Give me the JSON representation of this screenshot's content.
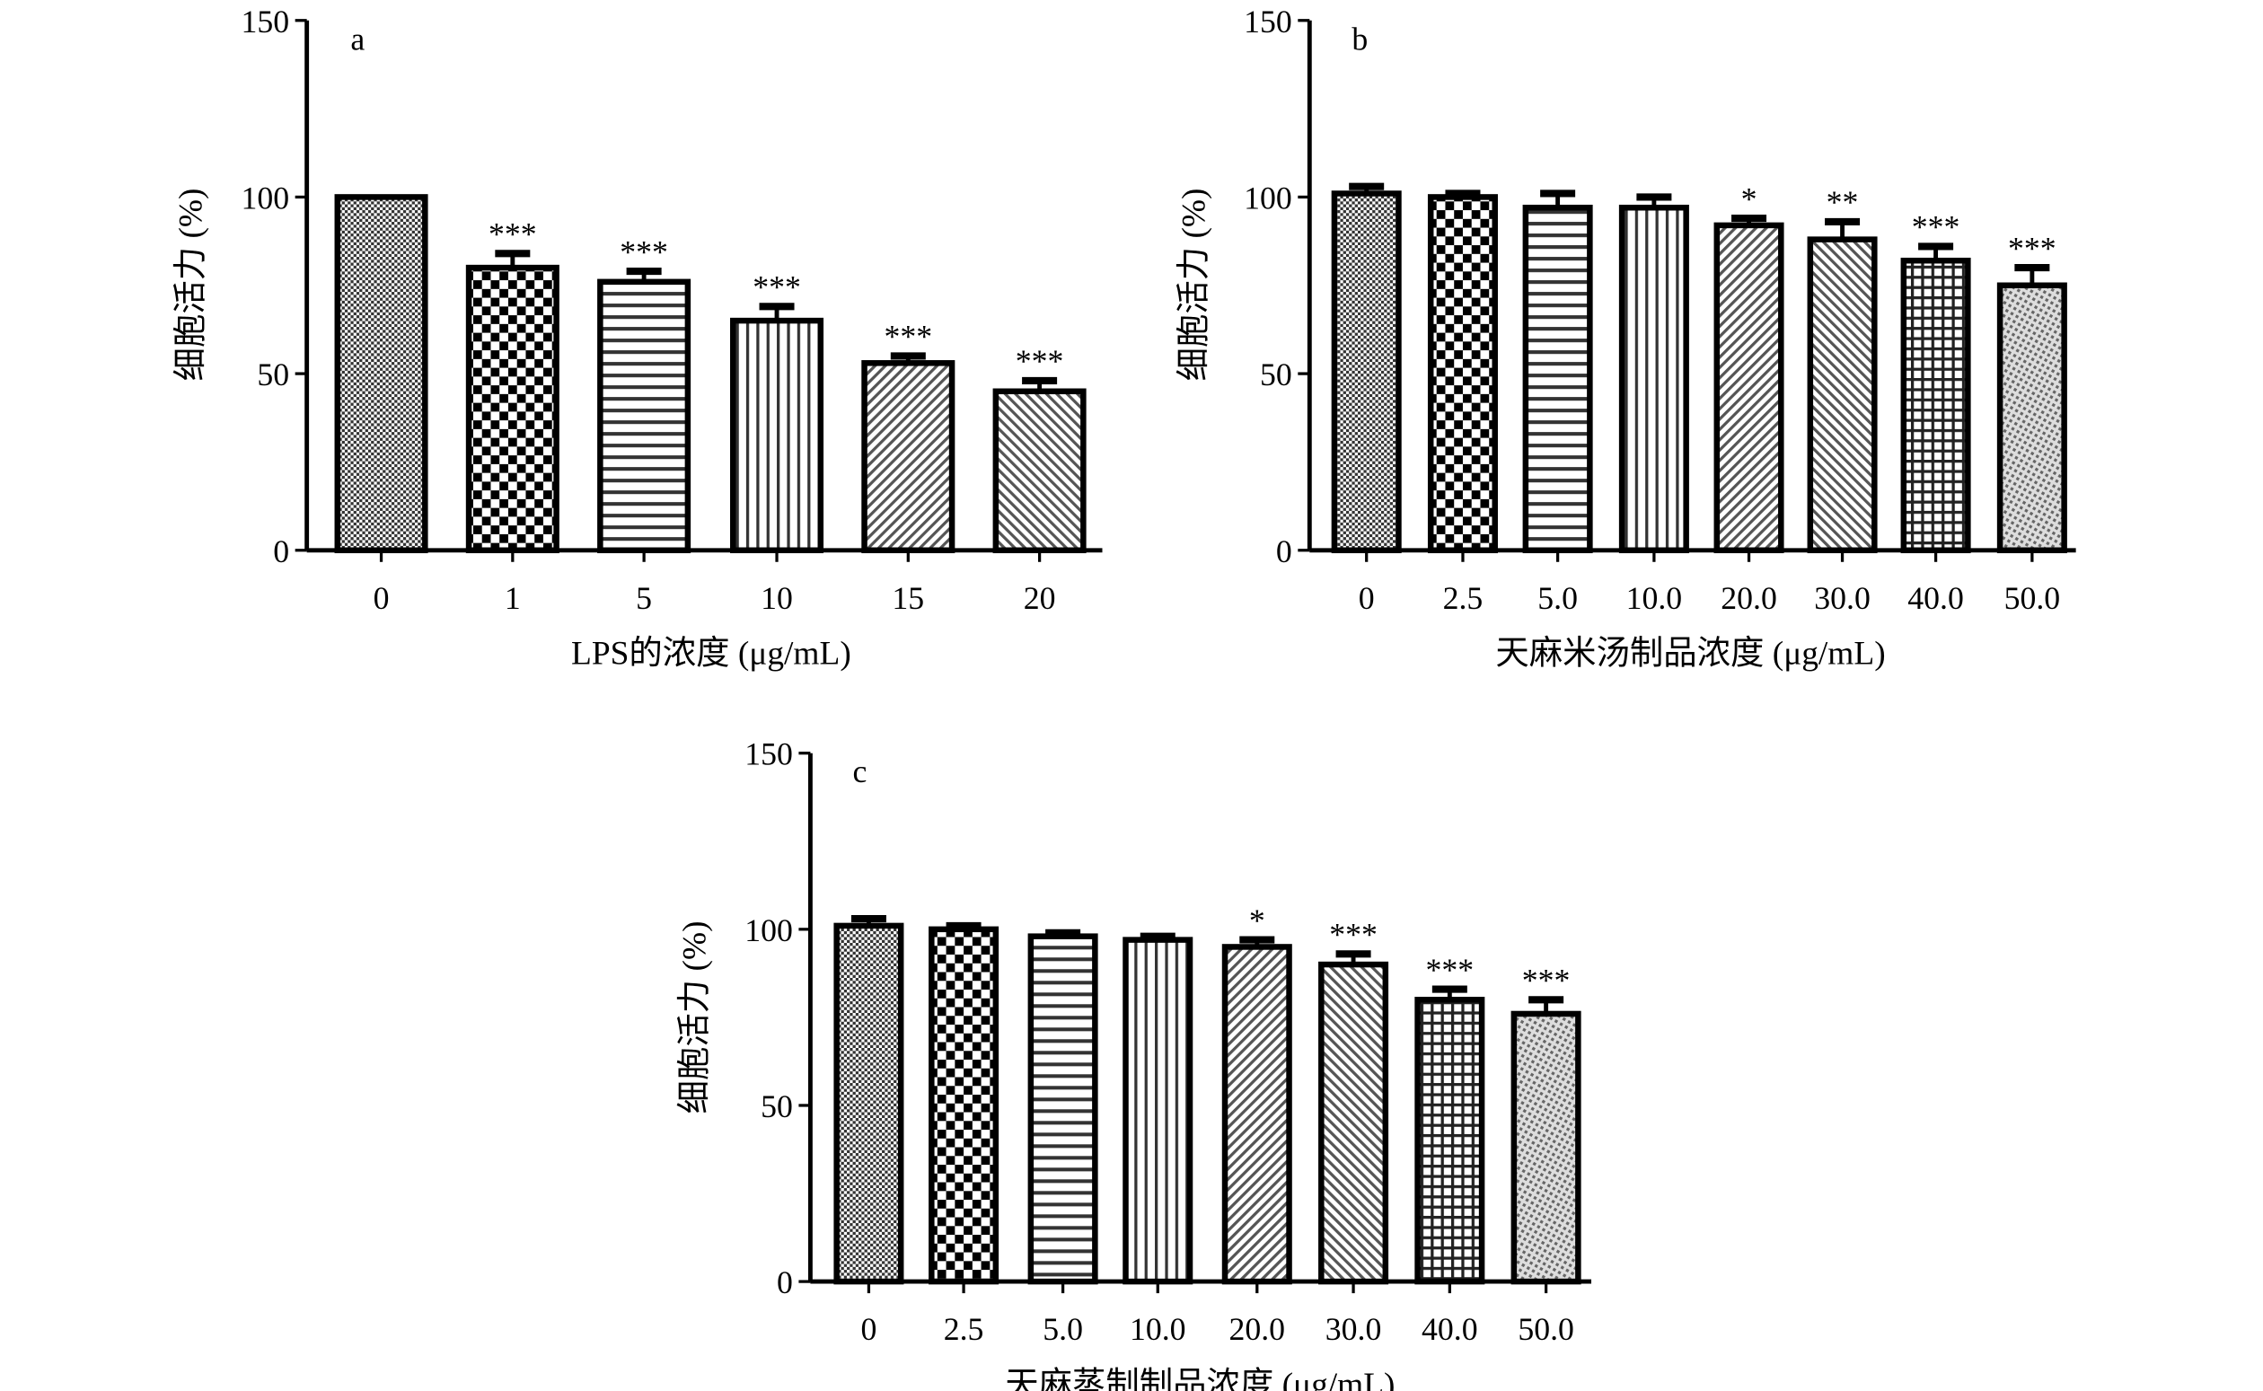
{
  "chart_data": [
    {
      "type": "bar",
      "panel_label": "a",
      "xlabel": "LPS的浓度 (μg/mL)",
      "ylabel": "细胞活力 (%)",
      "ylim": [
        0,
        150
      ],
      "yticks": [
        "0",
        "50",
        "100",
        "150"
      ],
      "categories": [
        "0",
        "1",
        "5",
        "10",
        "15",
        "20"
      ],
      "values": [
        100,
        80,
        76,
        65,
        53,
        45
      ],
      "errors": [
        0,
        4,
        3,
        4,
        2,
        3
      ],
      "significance": [
        "",
        "***",
        "***",
        "***",
        "***",
        "***"
      ]
    },
    {
      "type": "bar",
      "panel_label": "b",
      "xlabel": "天麻米汤制品浓度 (μg/mL)",
      "ylabel": "细胞活力 (%)",
      "ylim": [
        0,
        150
      ],
      "yticks": [
        "0",
        "50",
        "100",
        "150"
      ],
      "categories": [
        "0",
        "2.5",
        "5.0",
        "10.0",
        "20.0",
        "30.0",
        "40.0",
        "50.0"
      ],
      "values": [
        101,
        100,
        97,
        97,
        92,
        88,
        82,
        75
      ],
      "errors": [
        2,
        1,
        4,
        3,
        2,
        5,
        4,
        5
      ],
      "significance": [
        "",
        "",
        "",
        "",
        "*",
        "**",
        "***",
        "***"
      ]
    },
    {
      "type": "bar",
      "panel_label": "c",
      "xlabel": "天麻蒸制制品浓度 (μg/mL)",
      "ylabel": "细胞活力 (%)",
      "ylim": [
        0,
        150
      ],
      "yticks": [
        "0",
        "50",
        "100",
        "150"
      ],
      "categories": [
        "0",
        "2.5",
        "5.0",
        "10.0",
        "20.0",
        "30.0",
        "40.0",
        "50.0"
      ],
      "values": [
        101,
        100,
        98,
        97,
        95,
        90,
        80,
        76
      ],
      "errors": [
        2,
        1,
        1,
        1,
        2,
        3,
        3,
        4
      ],
      "significance": [
        "",
        "",
        "",
        "",
        "*",
        "***",
        "***",
        "***"
      ]
    }
  ]
}
